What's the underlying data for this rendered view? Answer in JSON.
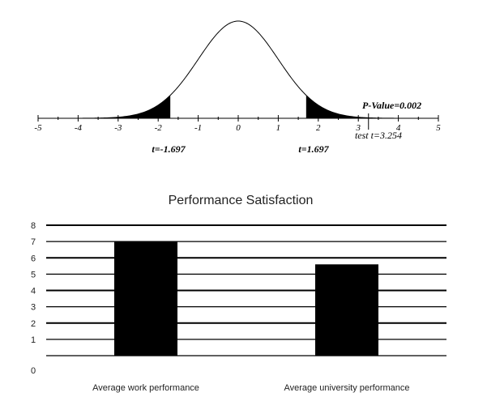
{
  "chart_data": [
    {
      "type": "line",
      "x_range": [
        -5,
        5
      ],
      "curve": "standard normal density",
      "tick_labels": [
        "-5",
        "-4",
        "-3",
        "-2",
        "-1",
        "0",
        "1",
        "2",
        "3",
        "4",
        "5"
      ],
      "shaded_regions": [
        {
          "from": -5,
          "to": -1.697
        },
        {
          "from": 1.697,
          "to": 5
        }
      ],
      "annotations": {
        "critical_left": "t=-1.697",
        "critical_right": "t=1.697",
        "test_stat": "test t=3.254",
        "p_value": "P-Value=0.002"
      },
      "test_stat_value": 3.254
    },
    {
      "type": "bar",
      "title": "Performance Satisfaction",
      "categories": [
        "Average work performance",
        "Average university performance"
      ],
      "values": [
        7.0,
        5.6
      ],
      "ylim": [
        0,
        8
      ],
      "y_ticks": [
        "0",
        "1",
        "2",
        "3",
        "4",
        "5",
        "6",
        "7",
        "8"
      ],
      "bar_color": "#000000",
      "grid": true
    }
  ]
}
